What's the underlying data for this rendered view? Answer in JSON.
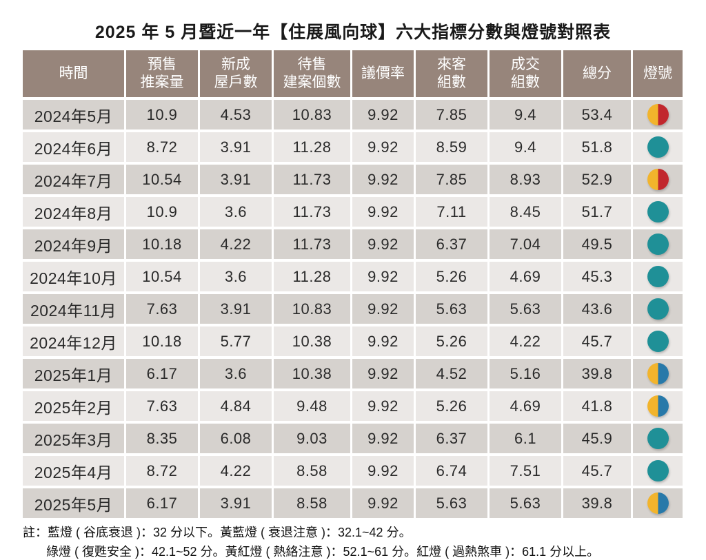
{
  "title": "2025 年 5 月暨近一年【住展風向球】六大指標分數與燈號對照表",
  "chart_data": {
    "type": "table",
    "title": "2025 年 5 月暨近一年【住展風向球】六大指標分數與燈號對照表",
    "columns": [
      "時間",
      "預售推案量",
      "新成屋戶數",
      "待售建案個數",
      "議價率",
      "來客組數",
      "成交組數",
      "總分",
      "燈號"
    ],
    "columns_display": [
      "時間",
      "預售\n推案量",
      "新成\n屋戶數",
      "待售\n建案個數",
      "議價率",
      "來客\n組數",
      "成交\n組數",
      "總分",
      "燈號"
    ],
    "rows": [
      {
        "time": "2024年5月",
        "values": [
          "10.9",
          "4.53",
          "10.83",
          "9.92",
          "7.85",
          "9.4",
          "53.4"
        ],
        "light": "yellow-red"
      },
      {
        "time": "2024年6月",
        "values": [
          "8.72",
          "3.91",
          "11.28",
          "9.92",
          "8.59",
          "9.4",
          "51.8"
        ],
        "light": "green"
      },
      {
        "time": "2024年7月",
        "values": [
          "10.54",
          "3.91",
          "11.73",
          "9.92",
          "7.85",
          "8.93",
          "52.9"
        ],
        "light": "yellow-red"
      },
      {
        "time": "2024年8月",
        "values": [
          "10.9",
          "3.6",
          "11.73",
          "9.92",
          "7.11",
          "8.45",
          "51.7"
        ],
        "light": "green"
      },
      {
        "time": "2024年9月",
        "values": [
          "10.18",
          "4.22",
          "11.73",
          "9.92",
          "6.37",
          "7.04",
          "49.5"
        ],
        "light": "green"
      },
      {
        "time": "2024年10月",
        "values": [
          "10.54",
          "3.6",
          "11.28",
          "9.92",
          "5.26",
          "4.69",
          "45.3"
        ],
        "light": "green"
      },
      {
        "time": "2024年11月",
        "values": [
          "7.63",
          "3.91",
          "10.83",
          "9.92",
          "5.63",
          "5.63",
          "43.6"
        ],
        "light": "green"
      },
      {
        "time": "2024年12月",
        "values": [
          "10.18",
          "5.77",
          "10.38",
          "9.92",
          "5.26",
          "4.22",
          "45.7"
        ],
        "light": "green"
      },
      {
        "time": "2025年1月",
        "values": [
          "6.17",
          "3.6",
          "10.38",
          "9.92",
          "4.52",
          "5.16",
          "39.8"
        ],
        "light": "yellow-blue"
      },
      {
        "time": "2025年2月",
        "values": [
          "7.63",
          "4.84",
          "9.48",
          "9.92",
          "5.26",
          "4.69",
          "41.8"
        ],
        "light": "yellow-blue"
      },
      {
        "time": "2025年3月",
        "values": [
          "8.35",
          "6.08",
          "9.03",
          "9.92",
          "6.37",
          "6.1",
          "45.9"
        ],
        "light": "green"
      },
      {
        "time": "2025年4月",
        "values": [
          "8.72",
          "4.22",
          "8.58",
          "9.92",
          "6.74",
          "7.51",
          "45.7"
        ],
        "light": "green"
      },
      {
        "time": "2025年5月",
        "values": [
          "6.17",
          "3.91",
          "8.58",
          "9.92",
          "5.63",
          "5.63",
          "39.8"
        ],
        "light": "yellow-blue"
      }
    ]
  },
  "lights": {
    "yellow-red": {
      "label": "黃紅燈",
      "left": "#F2B42C",
      "right": "#C1272D"
    },
    "green": {
      "label": "綠燈",
      "left": "#1F9097",
      "right": "#1F9097"
    },
    "yellow-blue": {
      "label": "黃藍燈",
      "left": "#F2B42C",
      "right": "#2879A9"
    }
  },
  "notes": [
    "註：藍燈 ( 谷底衰退 )：32 分以下。黃藍燈 ( 衰退注意 )：32.1~42 分。",
    "綠燈 ( 復甦安全 )：42.1~52 分。黃紅燈 ( 熱絡注意 )：52.1~61 分。紅燈 ( 過熱煞車 )：61.1 分以上。"
  ],
  "colors": {
    "header_bg": "#97857B",
    "row_dark": "#D6D2CE",
    "row_light": "#EBE8E6",
    "header_text": "#FFFFFF",
    "body_text": "#2A2A2A"
  }
}
